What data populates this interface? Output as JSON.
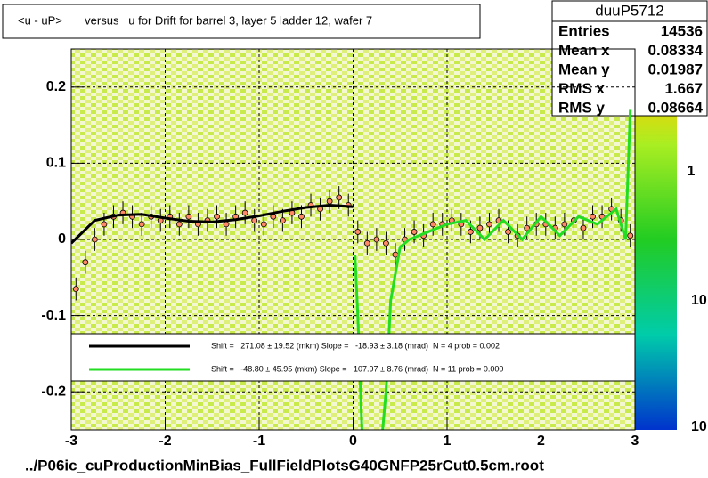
{
  "chart_data": {
    "type": "profile",
    "title": "<u - uP>       versus   u for Drift for barrel 3, layer 5 ladder 12, wafer 7",
    "footer": "../P06ic_cuProductionMinBias_FullFieldPlotsG40GNFP25rCut0.5cm.root",
    "stats": {
      "name": "duuP5712",
      "rows": [
        [
          "Entries",
          "14536"
        ],
        [
          "Mean x",
          "0.08334"
        ],
        [
          "Mean y",
          "0.01987"
        ],
        [
          "RMS x",
          "1.667"
        ],
        [
          "RMS y",
          "0.08664"
        ]
      ]
    },
    "xlim": [
      -3,
      3
    ],
    "xticks": [
      -3,
      -2,
      -1,
      0,
      1,
      2,
      3
    ],
    "ylim": [
      -0.25,
      0.25
    ],
    "yticks": [
      -0.2,
      -0.1,
      0,
      0.1,
      0.2
    ],
    "grid": true,
    "colorbar_labels": [
      "1",
      "10",
      "10"
    ],
    "x": [
      -2.95,
      -2.85,
      -2.75,
      -2.65,
      -2.55,
      -2.45,
      -2.35,
      -2.25,
      -2.15,
      -2.05,
      -1.95,
      -1.85,
      -1.75,
      -1.65,
      -1.55,
      -1.45,
      -1.35,
      -1.25,
      -1.15,
      -1.05,
      -0.95,
      -0.85,
      -0.75,
      -0.65,
      -0.55,
      -0.45,
      -0.35,
      -0.25,
      -0.15,
      -0.05,
      0.05,
      0.15,
      0.25,
      0.35,
      0.45,
      0.55,
      0.65,
      0.75,
      0.85,
      0.95,
      1.05,
      1.15,
      1.25,
      1.35,
      1.45,
      1.55,
      1.65,
      1.75,
      1.85,
      1.95,
      2.05,
      2.15,
      2.25,
      2.35,
      2.45,
      2.55,
      2.65,
      2.75,
      2.85,
      2.95
    ],
    "values": [
      -0.065,
      -0.03,
      0.0,
      0.02,
      0.03,
      0.035,
      0.03,
      0.02,
      0.03,
      0.025,
      0.03,
      0.02,
      0.03,
      0.02,
      0.025,
      0.03,
      0.02,
      0.03,
      0.035,
      0.025,
      0.02,
      0.03,
      0.025,
      0.035,
      0.03,
      0.045,
      0.04,
      0.05,
      0.055,
      0.045,
      0.01,
      -0.005,
      0.0,
      -0.005,
      -0.02,
      0.0,
      0.01,
      0.005,
      0.02,
      0.02,
      0.025,
      0.02,
      0.01,
      0.015,
      0.02,
      0.025,
      0.01,
      0.005,
      0.015,
      0.02,
      0.02,
      0.015,
      0.02,
      0.025,
      0.015,
      0.03,
      0.03,
      0.04,
      0.025,
      0.005
    ],
    "errors": [
      0.015,
      0.015,
      0.015,
      0.015,
      0.015,
      0.015,
      0.015,
      0.015,
      0.015,
      0.015,
      0.015,
      0.015,
      0.015,
      0.015,
      0.015,
      0.015,
      0.015,
      0.015,
      0.015,
      0.015,
      0.015,
      0.015,
      0.015,
      0.015,
      0.015,
      0.015,
      0.015,
      0.015,
      0.015,
      0.015,
      0.015,
      0.015,
      0.015,
      0.015,
      0.015,
      0.015,
      0.015,
      0.015,
      0.015,
      0.015,
      0.015,
      0.015,
      0.015,
      0.015,
      0.015,
      0.015,
      0.015,
      0.015,
      0.015,
      0.015,
      0.015,
      0.015,
      0.015,
      0.015,
      0.015,
      0.015,
      0.015,
      0.015,
      0.015,
      0.015
    ],
    "fits": [
      {
        "name": "Shift =   271.08 ± 19.52 (mkm) Slope =   -18.93 ± 3.18 (mrad)  N = 4 prob = 0.002",
        "color": "#000000",
        "x": [
          -3,
          -2.75,
          -2.5,
          -2.25,
          -2,
          -1.75,
          -1.5,
          -1.25,
          -1,
          -0.75,
          -0.5,
          -0.25,
          0
        ],
        "values": [
          -0.005,
          0.025,
          0.032,
          0.033,
          0.028,
          0.024,
          0.023,
          0.026,
          0.031,
          0.037,
          0.042,
          0.045,
          0.043
        ]
      },
      {
        "name": "Shift =   -48.80 ± 45.95 (mkm) Slope =   107.97 ± 8.76 (mrad)  N = 11 prob = 0.000",
        "color": "#22dd22",
        "x": [
          0.02,
          0.05,
          0.1,
          0.3,
          0.35,
          0.4,
          0.5,
          0.6,
          0.8,
          1.0,
          1.2,
          1.4,
          1.6,
          1.8,
          2.0,
          2.2,
          2.4,
          2.6,
          2.8,
          2.9,
          2.95
        ],
        "values": [
          -0.02,
          -0.1,
          -0.27,
          -0.27,
          -0.2,
          -0.08,
          -0.01,
          0.0,
          0.01,
          0.02,
          0.025,
          0.0,
          0.025,
          0.0,
          0.03,
          0.005,
          0.03,
          0.02,
          0.04,
          0.0,
          0.17
        ]
      }
    ]
  }
}
